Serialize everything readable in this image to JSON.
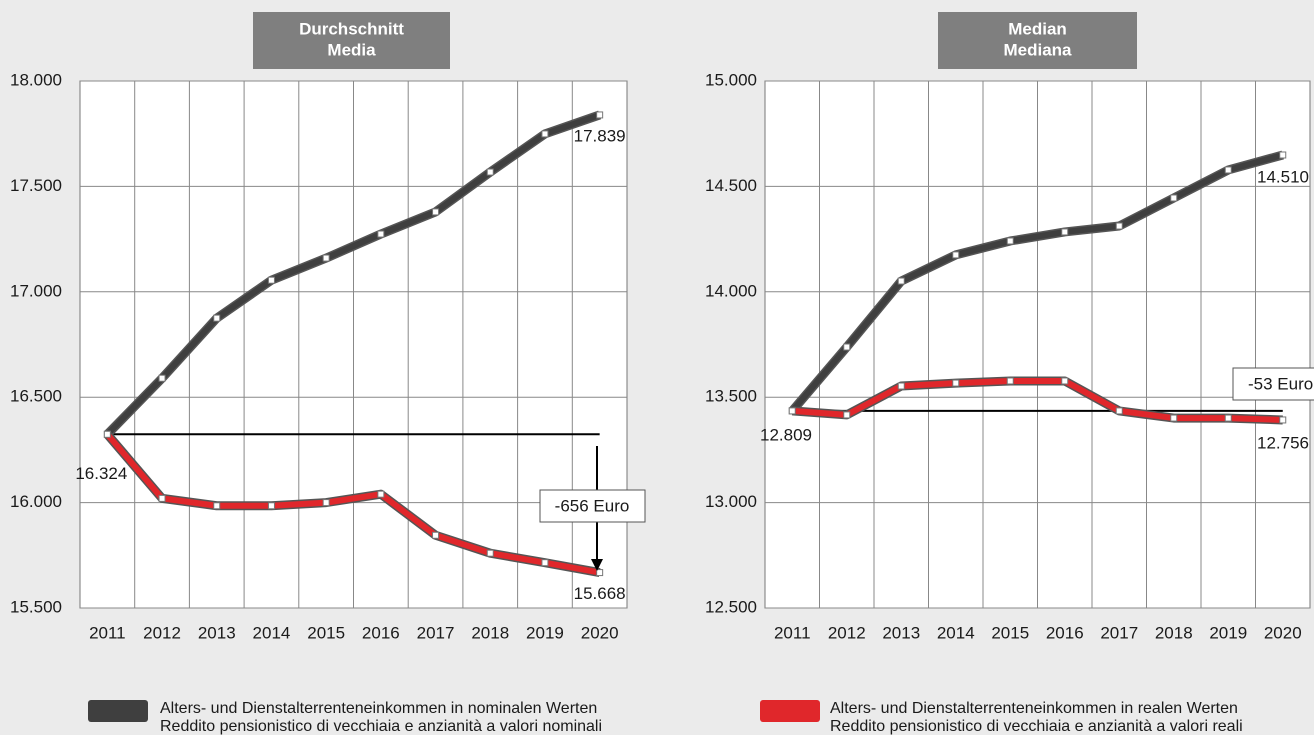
{
  "chart_data": [
    {
      "type": "line",
      "title": "Durchschnitt",
      "subtitle": "Media",
      "categories": [
        "2011",
        "2012",
        "2013",
        "2014",
        "2015",
        "2016",
        "2017",
        "2018",
        "2019",
        "2020"
      ],
      "ylim": [
        15500,
        18000
      ],
      "yticks": [
        {
          "value": 15500,
          "label": "15.500"
        },
        {
          "value": 16000,
          "label": "16.000"
        },
        {
          "value": 16500,
          "label": "16.500"
        },
        {
          "value": 17000,
          "label": "17.000"
        },
        {
          "value": 17500,
          "label": "17.500"
        },
        {
          "value": 18000,
          "label": "18.000"
        }
      ],
      "grid": true,
      "series": [
        {
          "color": "#3f3f3f",
          "values": [
            16324,
            16590,
            16875,
            17055,
            17160,
            17274,
            17379,
            17568,
            17749,
            17839
          ],
          "value_labels": [
            null,
            null,
            null,
            null,
            null,
            null,
            null,
            null,
            null,
            "17.839"
          ]
        },
        {
          "color": "#e0272b",
          "values": [
            16324,
            16020,
            15985,
            15985,
            16000,
            16040,
            15845,
            15760,
            15715,
            15668
          ],
          "value_labels": [
            "16.324",
            null,
            null,
            null,
            null,
            null,
            null,
            null,
            null,
            "15.668"
          ]
        }
      ],
      "annotations": [
        "-656 Euro"
      ]
    },
    {
      "type": "line",
      "title": "Median",
      "subtitle": "Mediana",
      "categories": [
        "2011",
        "2012",
        "2013",
        "2014",
        "2015",
        "2016",
        "2017",
        "2018",
        "2019",
        "2020"
      ],
      "ylim": [
        12500,
        15000
      ],
      "yticks": [
        {
          "value": 12500,
          "label": "12.500"
        },
        {
          "value": 13000,
          "label": "13.000"
        },
        {
          "value": 13500,
          "label": "13.500"
        },
        {
          "value": 14000,
          "label": "14.000"
        },
        {
          "value": 14500,
          "label": "14.500"
        },
        {
          "value": 15000,
          "label": "15.000"
        }
      ],
      "grid": true,
      "series": [
        {
          "color": "#3f3f3f",
          "values": [
            13435,
            13738,
            14051,
            14175,
            14241,
            14284,
            14312,
            14445,
            14578,
            14649
          ]
        },
        {
          "color": "#e0272b",
          "values": [
            13435,
            13416,
            13553,
            13567,
            13577,
            13577,
            13435,
            13401,
            13401,
            13392
          ]
        }
      ],
      "annotations": [
        "-53 Euro",
        "12.809",
        "14.510",
        "12.756"
      ]
    }
  ],
  "legend": [
    {
      "color": "#3f3f3f",
      "lines": [
        "Alters- und Dienstalterrenteneinkommen in nominalen Werten",
        "Reddito pensionistico di vecchiaia e anzianità  a valori nominali"
      ]
    },
    {
      "color": "#e0272b",
      "lines": [
        "Alters- und Dienstalterrenteneinkommen in realen Werten",
        "Reddito pensionistico di vecchiaia e anzianità a valori reali"
      ]
    }
  ]
}
